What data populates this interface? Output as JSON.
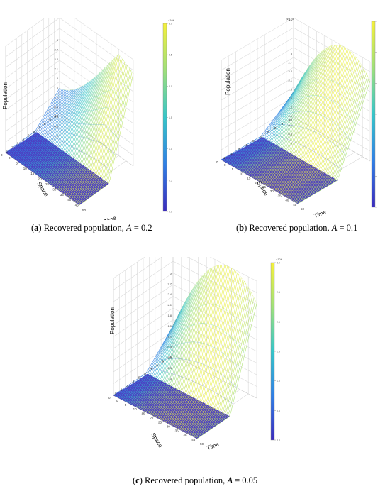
{
  "figure": {
    "panels": [
      {
        "letter": "a",
        "caption_text": "Recovered population,",
        "param_symbol": "A",
        "param_value": "= 0.2",
        "zlabel": "Population",
        "xlabel": "Time",
        "ylabel": "Space",
        "exponent": "×10⁴",
        "time_ticks": [
          "0",
          "5",
          "10",
          "15",
          "20",
          "25",
          "30",
          "35",
          "40",
          "45",
          "50"
        ],
        "space_ticks": [
          "10",
          "9",
          "8",
          "7",
          "6",
          "5",
          "4",
          "3",
          "2",
          "1",
          "0"
        ],
        "chart_data": {
          "type": "surface",
          "surface_shape": "rising",
          "xlabel": "Time",
          "ylabel": "Space",
          "zlabel": "Population",
          "xlim": [
            0,
            50
          ],
          "ylim": [
            0,
            10
          ],
          "colormap": [
            "#3b2bbd",
            "#2f7fe6",
            "#35c6c9",
            "#9fe07a",
            "#f5f13a"
          ]
        }
      },
      {
        "letter": "b",
        "caption_text": "Recovered population,",
        "param_symbol": "A",
        "param_value": "= 0.1",
        "zlabel": "Population",
        "xlabel": "Time",
        "ylabel": "Space",
        "exponent": "×10⁴",
        "time_ticks": [
          "0",
          "5",
          "10",
          "15",
          "20",
          "25",
          "30",
          "35",
          "40",
          "45",
          "50"
        ],
        "space_ticks": [
          "10",
          "9",
          "8",
          "7",
          "6",
          "5",
          "4",
          "3",
          "2",
          "1",
          "0"
        ],
        "chart_data": {
          "type": "surface",
          "surface_shape": "hump",
          "xlabel": "Time",
          "ylabel": "Space",
          "zlabel": "Population",
          "xlim": [
            0,
            50
          ],
          "ylim": [
            0,
            10
          ],
          "colormap": [
            "#3b2bbd",
            "#2f7fe6",
            "#35c6c9",
            "#9fe07a",
            "#f5f13a"
          ]
        }
      },
      {
        "letter": "c",
        "caption_text": "Recovered population,",
        "param_symbol": "A",
        "param_value": "= 0.05",
        "zlabel": "Population",
        "xlabel": "Time",
        "ylabel": "Space",
        "exponent": "×10⁴",
        "time_ticks": [
          "0",
          "5",
          "10",
          "15",
          "20",
          "25",
          "30",
          "35",
          "40",
          "45",
          "50"
        ],
        "space_ticks": [
          "10",
          "9",
          "8",
          "7",
          "6",
          "5",
          "4",
          "3",
          "2",
          "1",
          "0"
        ],
        "chart_data": {
          "type": "surface",
          "surface_shape": "hump",
          "xlabel": "Time",
          "ylabel": "Space",
          "zlabel": "Population",
          "xlim": [
            0,
            50
          ],
          "ylim": [
            0,
            10
          ],
          "colormap": [
            "#3b2bbd",
            "#2f7fe6",
            "#35c6c9",
            "#9fe07a",
            "#f5f13a"
          ]
        }
      }
    ]
  }
}
